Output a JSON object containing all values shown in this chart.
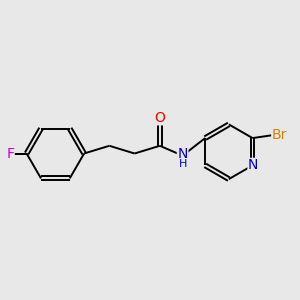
{
  "background_color": "#e8e8e8",
  "bond_color": "#000000",
  "atom_colors": {
    "O": "#ff0000",
    "N": "#0000cc",
    "F": "#cc00cc",
    "Br": "#cc8800"
  },
  "figsize": [
    3.0,
    3.0
  ],
  "dpi": 100,
  "lw": 1.4,
  "doff": 0.055
}
